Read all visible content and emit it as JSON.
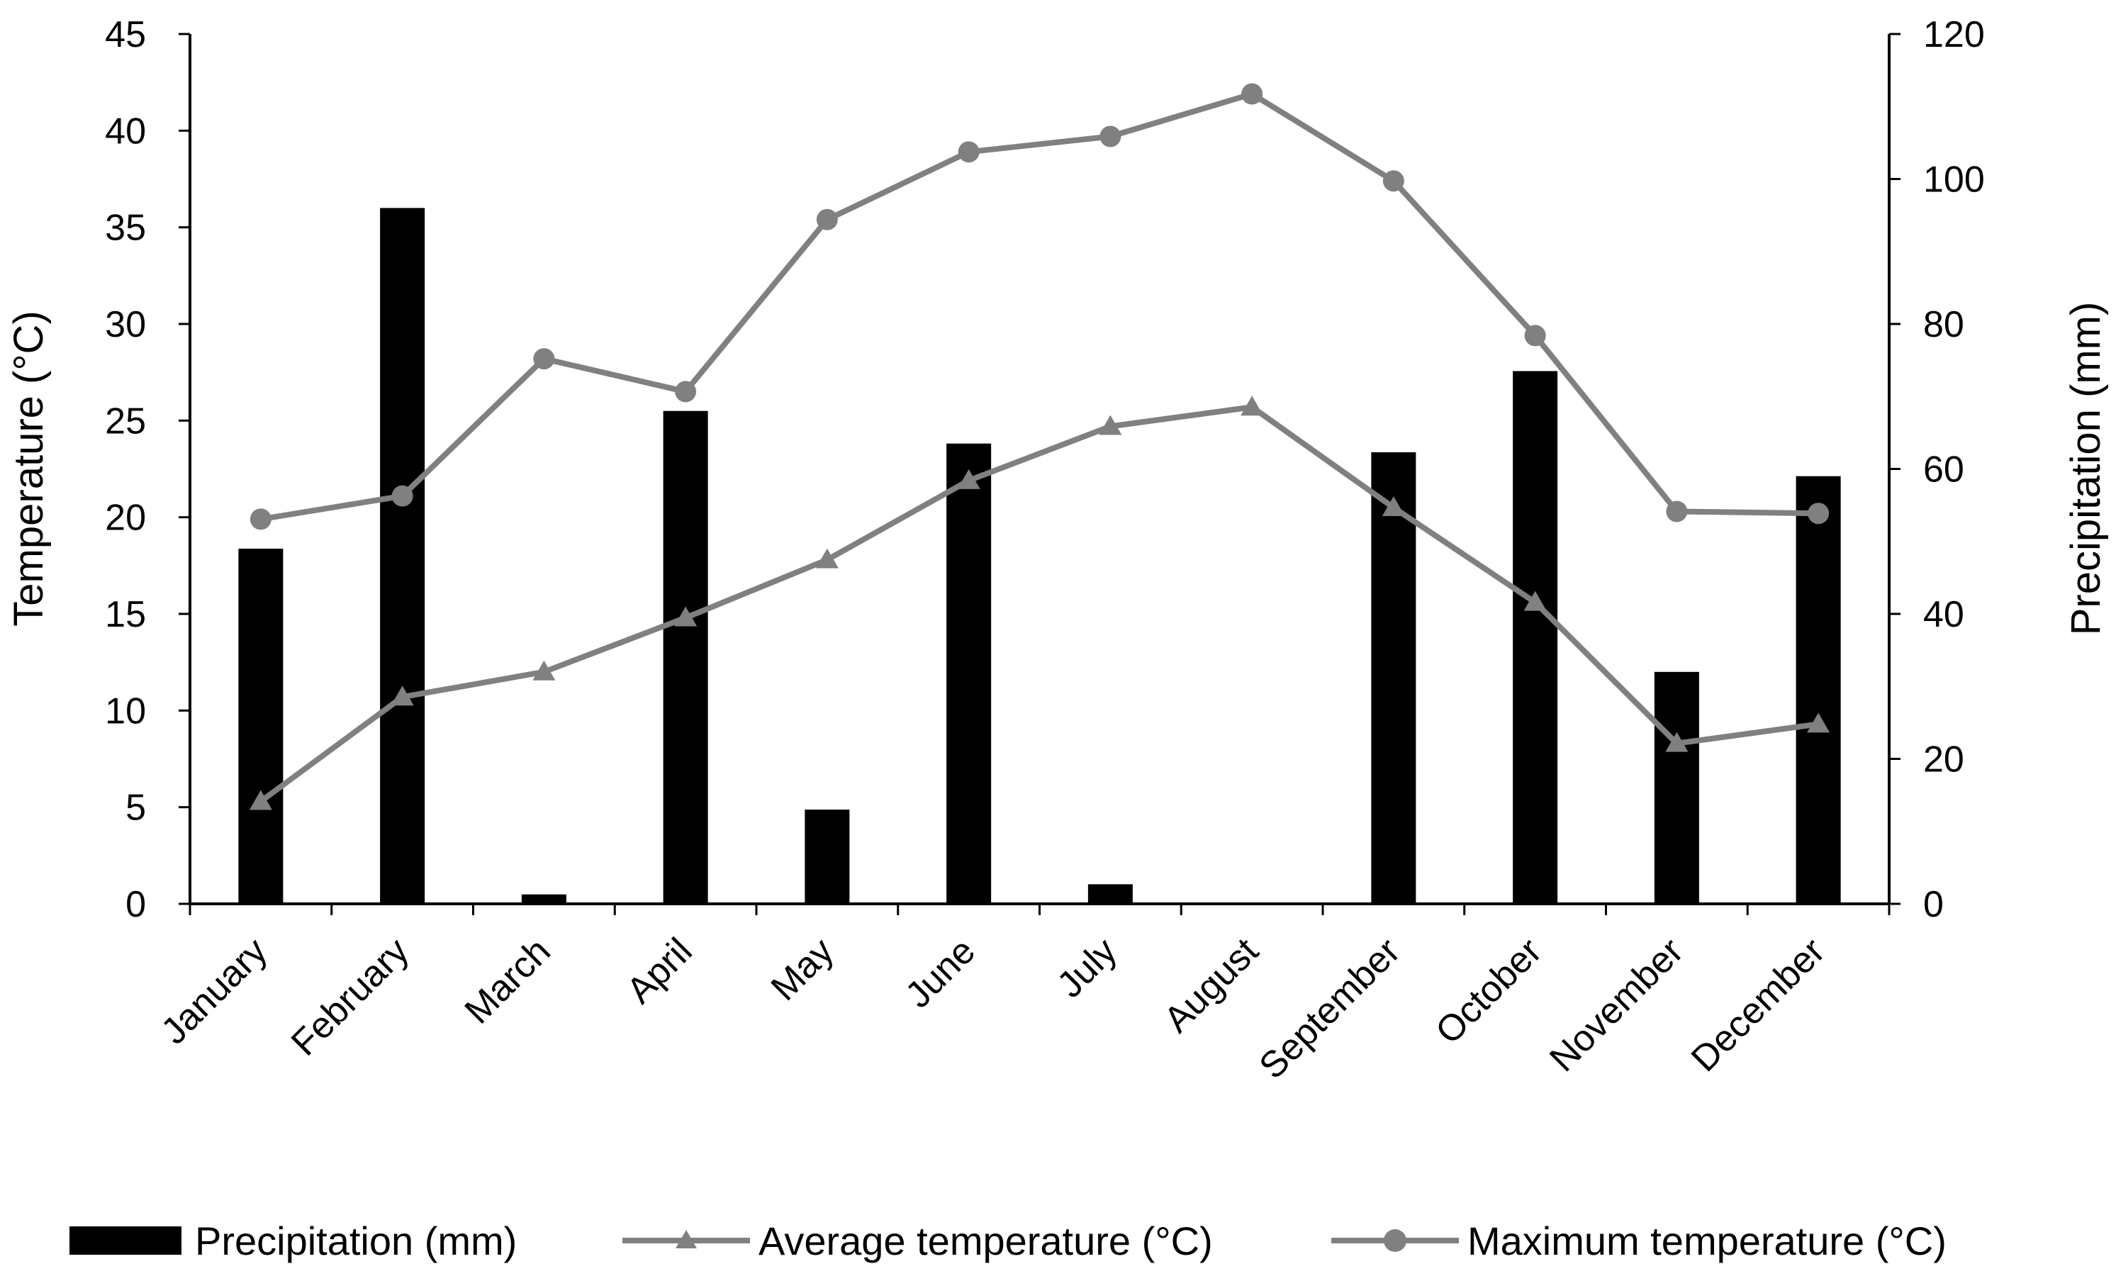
{
  "chart_data": {
    "type": "bar+line",
    "categories": [
      "January",
      "February",
      "March",
      "April",
      "May",
      "June",
      "July",
      "August",
      "September",
      "October",
      "November",
      "December"
    ],
    "series": [
      {
        "name": "Precipitation (mm)",
        "type": "bar",
        "axis": "right",
        "color": "#000000",
        "values": [
          49,
          96,
          1.3,
          68,
          13,
          63.5,
          2.7,
          0,
          62.3,
          73.5,
          32,
          59
        ]
      },
      {
        "name": "Average temperature (°C)",
        "type": "line",
        "marker": "triangle",
        "axis": "left",
        "color": "#808080",
        "values": [
          5.3,
          10.7,
          12.0,
          14.8,
          17.8,
          21.9,
          24.7,
          25.7,
          20.5,
          15.6,
          8.3,
          9.3
        ]
      },
      {
        "name": "Maximum temperature (°C)",
        "type": "line",
        "marker": "circle",
        "axis": "left",
        "color": "#808080",
        "values": [
          19.9,
          21.1,
          28.2,
          26.5,
          35.4,
          38.9,
          39.7,
          41.9,
          37.4,
          29.4,
          20.3,
          20.2
        ]
      }
    ],
    "left_axis": {
      "label": "Temperature (°C)",
      "range": [
        0,
        45
      ],
      "ticks": [
        "0",
        "5",
        "10",
        "15",
        "20",
        "25",
        "30",
        "35",
        "40",
        "45"
      ]
    },
    "right_axis": {
      "label": "Precipitation (mm)",
      "range": [
        0,
        120
      ],
      "ticks": [
        "0",
        "20",
        "40",
        "60",
        "80",
        "100",
        "120"
      ]
    },
    "grid": false,
    "legend": "bottom"
  }
}
